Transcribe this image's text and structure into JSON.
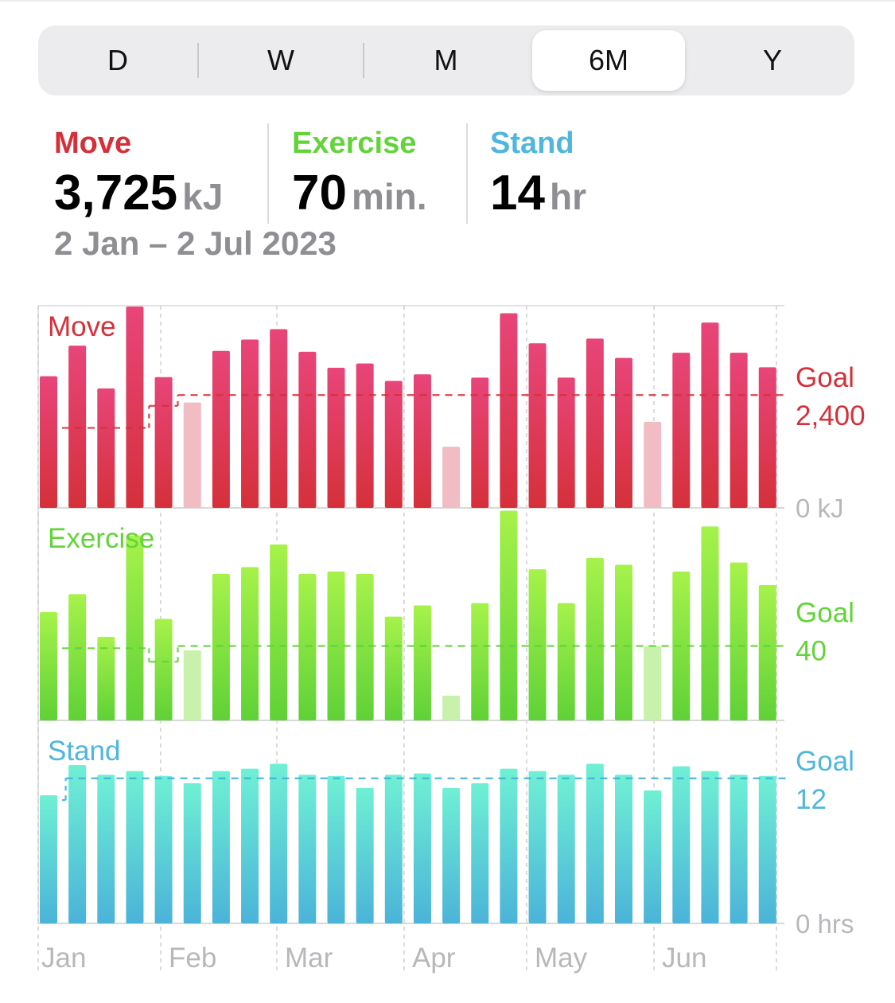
{
  "segments": [
    {
      "label": "D",
      "selected": false
    },
    {
      "label": "W",
      "selected": false
    },
    {
      "label": "M",
      "selected": false
    },
    {
      "label": "6M",
      "selected": true
    },
    {
      "label": "Y",
      "selected": false
    }
  ],
  "summary": {
    "move": {
      "label": "Move",
      "value": "3,725",
      "unit": "kJ"
    },
    "exercise": {
      "label": "Exercise",
      "value": "70",
      "unit": "min."
    },
    "stand": {
      "label": "Stand",
      "value": "14",
      "unit": "hr"
    },
    "date_range": "2 Jan – 2 Jul 2023"
  },
  "colors": {
    "move": "#d5303a",
    "move_top": "#e8457a",
    "move_faded": "#f1bcc3",
    "exercise": "#5fd137",
    "exercise_top": "#a6f24a",
    "exercise_faded": "#c8f2ab",
    "stand": "#4bb3d9",
    "stand_top": "#6ff0d4",
    "stand_label": "#4fb6de"
  },
  "chart_data": {
    "type": "bar",
    "x_ticks": [
      "Jan",
      "Feb",
      "Mar",
      "Apr",
      "May",
      "Jun"
    ],
    "panels": [
      {
        "name": "Move",
        "key": "move",
        "goal_label": "Goal",
        "goal_value": "2,400",
        "goal": 2400,
        "zero_label": "0 kJ",
        "ylim": [
          0,
          4300
        ],
        "values": [
          2800,
          3450,
          2540,
          4280,
          2780,
          2240,
          3340,
          3580,
          3800,
          3320,
          2980,
          3070,
          2700,
          2840,
          1300,
          2770,
          4140,
          3500,
          2770,
          3600,
          3190,
          1830,
          3300,
          3940,
          3300,
          2990
        ],
        "met": [
          true,
          true,
          true,
          true,
          true,
          false,
          true,
          true,
          true,
          true,
          true,
          true,
          true,
          true,
          false,
          true,
          true,
          true,
          true,
          true,
          true,
          false,
          true,
          true,
          true,
          true
        ],
        "goal_history": [
          {
            "from": 0,
            "to": 3.8,
            "value": 1700
          },
          {
            "from": 3.8,
            "to": 4.8,
            "value": 2170
          },
          {
            "from": 4.8,
            "to": 26,
            "value": 2400
          }
        ]
      },
      {
        "name": "Exercise",
        "key": "exercise",
        "goal_label": "Goal",
        "goal_value": "40",
        "goal": 40,
        "zero_label": "",
        "ylim": [
          0,
          90
        ],
        "values": [
          48,
          56,
          37,
          82,
          45,
          31,
          65,
          68,
          78,
          65,
          66,
          65,
          46,
          51,
          11,
          52,
          93,
          67,
          52,
          72,
          69,
          33,
          66,
          86,
          70,
          60
        ],
        "met": [
          true,
          true,
          true,
          true,
          true,
          false,
          true,
          true,
          true,
          true,
          true,
          true,
          true,
          true,
          false,
          true,
          true,
          true,
          true,
          true,
          true,
          false,
          true,
          true,
          true,
          true
        ],
        "goal_history": [
          {
            "from": 0,
            "to": 3.8,
            "value": 32
          },
          {
            "from": 3.8,
            "to": 4.8,
            "value": 26
          },
          {
            "from": 4.8,
            "to": 26,
            "value": 33
          }
        ]
      },
      {
        "name": "Stand",
        "key": "stand",
        "goal_label": "Goal",
        "goal_value": "12",
        "goal": 12,
        "zero_label": "0 hrs",
        "ylim": [
          0,
          16
        ],
        "values": [
          10.6,
          13.1,
          12.3,
          12.6,
          12.2,
          11.6,
          12.6,
          12.8,
          13.2,
          12.3,
          12.2,
          11.2,
          12.3,
          12.4,
          11.2,
          11.6,
          12.8,
          12.6,
          12.3,
          13.2,
          12.3,
          11.0,
          13.0,
          12.6,
          12.3,
          12.2
        ],
        "met": [
          true,
          true,
          true,
          true,
          true,
          true,
          true,
          true,
          true,
          true,
          true,
          true,
          true,
          true,
          true,
          true,
          true,
          true,
          true,
          true,
          true,
          true,
          true,
          true,
          true,
          true
        ],
        "goal_history": [
          {
            "from": 0,
            "to": 0.9,
            "value": 10.2
          },
          {
            "from": 0.9,
            "to": 26,
            "value": 12
          }
        ]
      }
    ]
  }
}
